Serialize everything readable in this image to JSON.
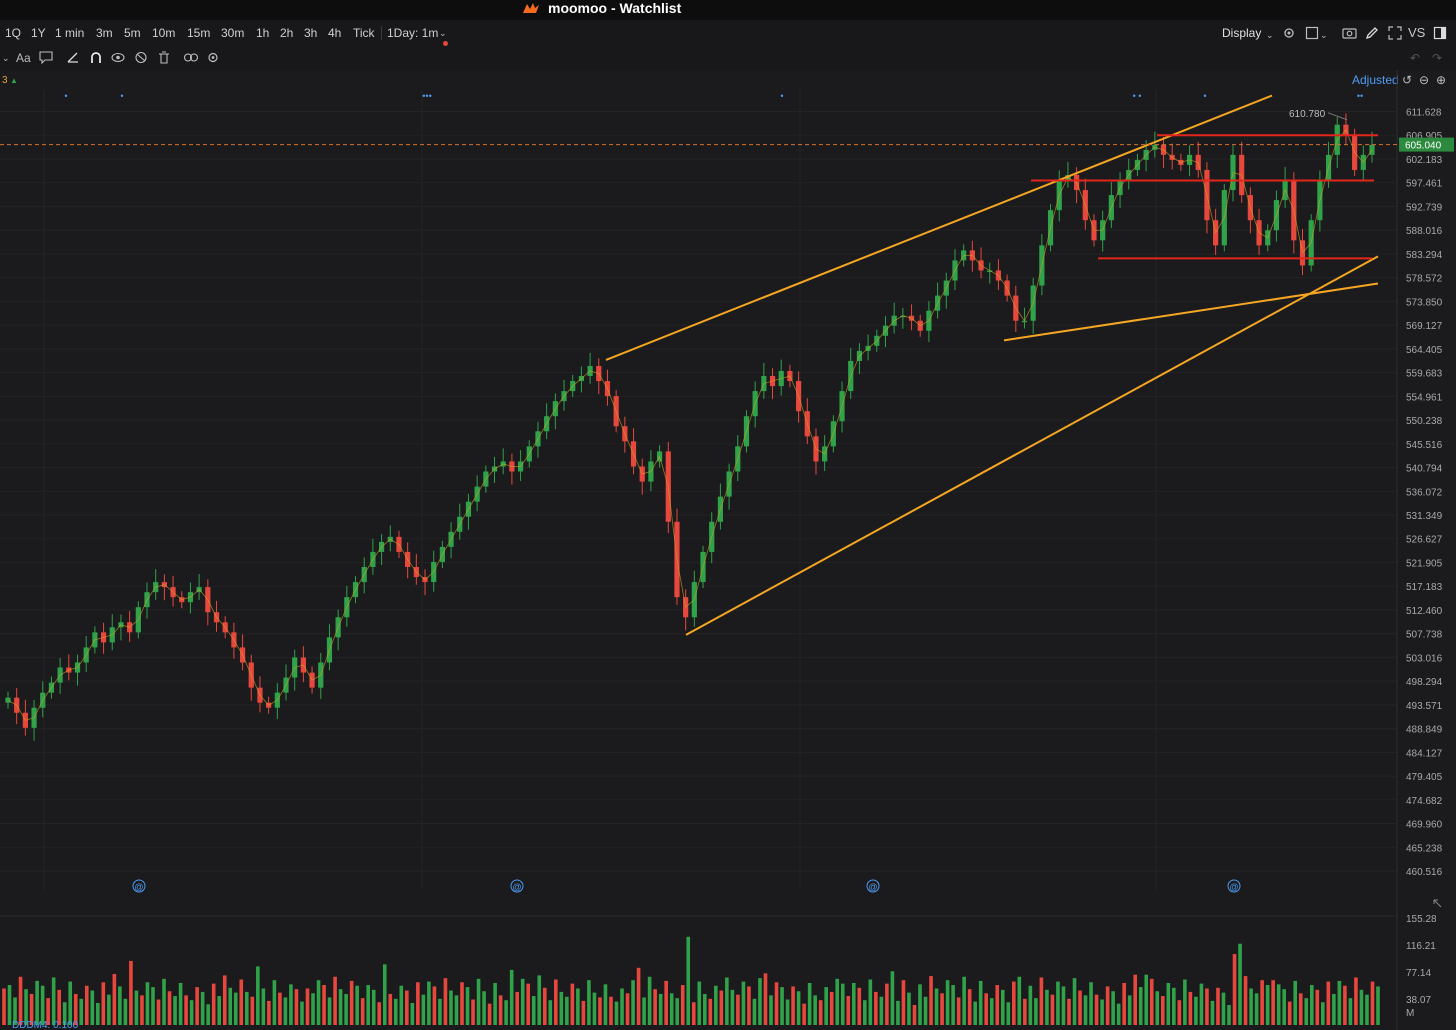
{
  "window": {
    "title": "moomoo - Watchlist"
  },
  "toolbar": {
    "timeframes": [
      "1Q",
      "1Y",
      "1 min",
      "3m",
      "5m",
      "10m",
      "15m",
      "30m",
      "1h",
      "2h",
      "3h",
      "4h",
      "Tick",
      "1Day: 1m"
    ],
    "display_label": "Display",
    "vs_label": "VS",
    "adjusted_label": "Adjusted"
  },
  "indicator": {
    "label_fragment": "3"
  },
  "price_axis": {
    "ticks": [
      "611.628",
      "606.905",
      "602.183",
      "597.461",
      "592.739",
      "588.016",
      "583.294",
      "578.572",
      "573.850",
      "569.127",
      "564.405",
      "559.683",
      "554.961",
      "550.238",
      "545.516",
      "540.794",
      "536.072",
      "531.349",
      "526.627",
      "521.905",
      "517.183",
      "512.460",
      "507.738",
      "503.016",
      "498.294",
      "493.571",
      "488.849",
      "484.127",
      "479.405",
      "474.682",
      "469.960",
      "465.238",
      "460.516"
    ],
    "current_price": "605.040",
    "high_marker": "610.780"
  },
  "volume_axis": {
    "ticks": [
      "155.28",
      "116.21",
      "77.14",
      "38.07",
      "M"
    ]
  },
  "footer": {
    "label": "DDDM4: 0.100"
  },
  "colors": {
    "background": "#1b1b1d",
    "up": "#2fa24a",
    "down": "#e8473d",
    "trendline": "#f5a623",
    "level": "#e3261c",
    "current_line": "#d9722b",
    "current_badge": "#2b8a3e",
    "accent": "#4e9cf5"
  },
  "chart_data": {
    "type": "candlestick",
    "ylim": [
      460.516,
      611.628
    ],
    "last_price": 605.04,
    "high_label": 610.78,
    "horizontal_levels": [
      606.9,
      597.9,
      582.4
    ],
    "trendlines": [
      {
        "name": "upper channel",
        "from": [
          606,
          562.2
        ],
        "to": [
          1272,
          614.8
        ]
      },
      {
        "name": "lower channel",
        "from": [
          686,
          507.5
        ],
        "to": [
          1378,
          582.8
        ]
      },
      {
        "name": "support wedge",
        "from": [
          1004,
          566.1
        ],
        "to": [
          1378,
          577.4
        ]
      }
    ],
    "closes": [
      495,
      492,
      489,
      493,
      496,
      498,
      501,
      500,
      502,
      505,
      508,
      506,
      509,
      510,
      508,
      513,
      516,
      518,
      517,
      515,
      514,
      516,
      517,
      512,
      510,
      508,
      505,
      502,
      497,
      494,
      493,
      496,
      499,
      503,
      500,
      497,
      502,
      507,
      511,
      515,
      518,
      521,
      524,
      526,
      527,
      524,
      521,
      519,
      518,
      522,
      525,
      528,
      531,
      534,
      537,
      540,
      541,
      542,
      540,
      542,
      545,
      548,
      551,
      554,
      556,
      558,
      559,
      561,
      558,
      555,
      549,
      546,
      541,
      538,
      542,
      544,
      530,
      515,
      511,
      518,
      524,
      530,
      535,
      540,
      545,
      551,
      556,
      559,
      557,
      560,
      558,
      552,
      547,
      542,
      545,
      550,
      556,
      562,
      564,
      565,
      567,
      569,
      571,
      571,
      570,
      568,
      572,
      575,
      578,
      582,
      584,
      582,
      580,
      580,
      578,
      575,
      570,
      570,
      577,
      585,
      592,
      598,
      599,
      596,
      590,
      586,
      590,
      595,
      598,
      600,
      602,
      604,
      605,
      603,
      602,
      601,
      603,
      600,
      590,
      585,
      596,
      603,
      595,
      590,
      585,
      588,
      594,
      598,
      586,
      581,
      590,
      598,
      603,
      609,
      607,
      600,
      603,
      605
    ]
  },
  "markers": {
    "top_dots": [
      "•",
      "•",
      "•••",
      "•",
      "• •",
      "•",
      "••"
    ],
    "bottom_icons": [
      "@",
      "@",
      "@",
      "@"
    ]
  }
}
